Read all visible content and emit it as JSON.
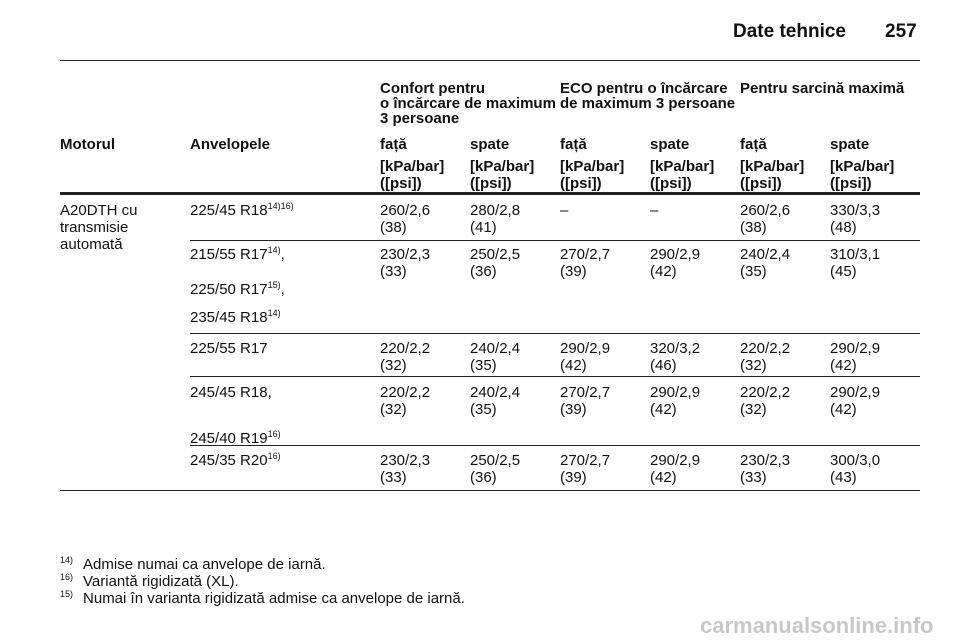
{
  "header": {
    "title": "Date tehnice",
    "page": "257"
  },
  "table": {
    "group_headers": [
      [
        "Confort pentru",
        "o încărcare de maximum",
        "3 persoane"
      ],
      [
        "ECO pentru o încărcare",
        "de maximum 3 persoane"
      ],
      [
        "Pentru sarcină maximă"
      ]
    ],
    "columns": [
      "Motorul",
      "Anvelopele",
      "față",
      "spate",
      "față",
      "spate",
      "față",
      "spate"
    ],
    "units": [
      [
        "[kPa/bar]",
        "([psi])"
      ],
      [
        "[kPa/bar]",
        "([psi])"
      ],
      [
        "[kPa/bar]",
        "([psi])"
      ],
      [
        "[kPa/bar]",
        "([psi])"
      ],
      [
        "[kPa/bar]",
        "([psi])"
      ],
      [
        "[kPa/bar]",
        "([psi])"
      ]
    ],
    "engine": [
      "A20DTH cu",
      "transmisie",
      "automată"
    ],
    "rows": [
      {
        "tires": [
          {
            "text": "225/45 R18",
            "sup": "14)16)"
          }
        ],
        "values": [
          [
            "260/2,6",
            "(38)"
          ],
          [
            "280/2,8",
            "(41)"
          ],
          [
            "–"
          ],
          [
            "–"
          ],
          [
            "260/2,6",
            "(38)"
          ],
          [
            "330/3,3",
            "(48)"
          ]
        ]
      },
      {
        "tires": [
          {
            "text": "215/55 R17",
            "sup": "14)",
            "suffix": ","
          },
          {
            "text": "225/50 R17",
            "sup": "15)",
            "suffix": ","
          },
          {
            "text": "235/45 R18",
            "sup": "14)"
          }
        ],
        "values": [
          [
            "230/2,3",
            "(33)"
          ],
          [
            "250/2,5",
            "(36)"
          ],
          [
            "270/2,7",
            "(39)"
          ],
          [
            "290/2,9",
            "(42)"
          ],
          [
            "240/2,4",
            "(35)"
          ],
          [
            "310/3,1",
            "(45)"
          ]
        ]
      },
      {
        "tires": [
          {
            "text": "225/55 R17"
          }
        ],
        "values": [
          [
            "220/2,2",
            "(32)"
          ],
          [
            "240/2,4",
            "(35)"
          ],
          [
            "290/2,9",
            "(42)"
          ],
          [
            "320/3,2",
            "(46)"
          ],
          [
            "220/2,2",
            "(32)"
          ],
          [
            "290/2,9",
            "(42)"
          ]
        ]
      },
      {
        "tires": [
          {
            "text": "245/45 R18,"
          },
          {
            "text": "245/40 R19",
            "sup": "16)"
          }
        ],
        "values": [
          [
            "220/2,2",
            "(32)"
          ],
          [
            "240/2,4",
            "(35)"
          ],
          [
            "270/2,7",
            "(39)"
          ],
          [
            "290/2,9",
            "(42)"
          ],
          [
            "220/2,2",
            "(32)"
          ],
          [
            "290/2,9",
            "(42)"
          ]
        ]
      },
      {
        "tires": [
          {
            "text": "245/35 R20",
            "sup": "16)"
          }
        ],
        "values": [
          [
            "230/2,3",
            "(33)"
          ],
          [
            "250/2,5",
            "(36)"
          ],
          [
            "270/2,7",
            "(39)"
          ],
          [
            "290/2,9",
            "(42)"
          ],
          [
            "230/2,3",
            "(33)"
          ],
          [
            "300/3,0",
            "(43)"
          ]
        ]
      }
    ]
  },
  "footnotes": [
    {
      "mark": "14)",
      "text": "Admise numai ca anvelope de iarnă."
    },
    {
      "mark": "16)",
      "text": "Variantă rigidizată (XL)."
    },
    {
      "mark": "15)",
      "text": "Numai în varianta rigidizată admise ca anvelope de iarnă."
    }
  ],
  "watermark": "carmanualsonline.info"
}
